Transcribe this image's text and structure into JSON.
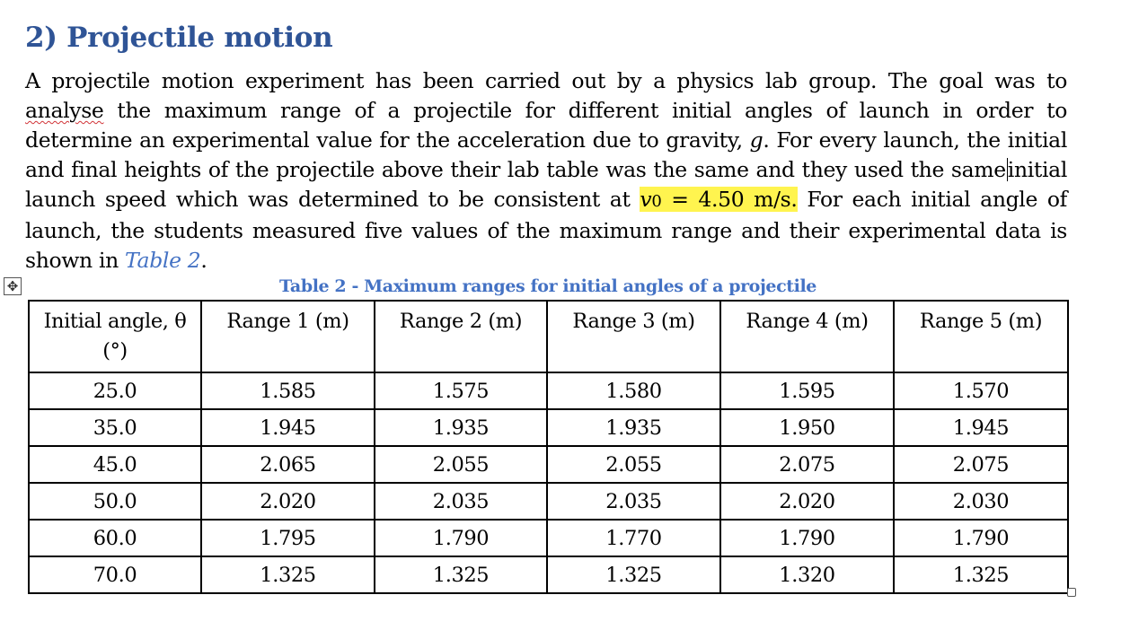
{
  "heading": "2) Projectile motion",
  "paragraph": {
    "p1": "A projectile motion experiment has been carried out by a physics lab group. The goal was to ",
    "p1_flagged": "analyse",
    "p2": " the maximum range of a projectile for different initial angles of launch in order to determine an experimental value for the acceleration due to gravity, ",
    "g_symbol": "g",
    "p3": ". For every launch, the initial and final heights of the projectile above their lab table was the same and they used the same",
    "p4": "initial launch speed which was determined to be consistent at ",
    "v0_symbol": "v",
    "v0_sub": "0",
    "v0_value": " = 4.50 m/s.",
    "p5": " For each initial angle of launch, the students measured five values of the maximum range and their experimental data is shown in ",
    "table_ref": "Table 2",
    "p6": "."
  },
  "table": {
    "caption": "Table 2 - Maximum ranges for initial angles of a projectile",
    "headers": [
      "Initial angle, θ (°)",
      "Range 1 (m)",
      "Range 2 (m)",
      "Range 3 (m)",
      "Range 4 (m)",
      "Range 5 (m)"
    ],
    "rows": [
      [
        "25.0",
        "1.585",
        "1.575",
        "1.580",
        "1.595",
        "1.570"
      ],
      [
        "35.0",
        "1.945",
        "1.935",
        "1.935",
        "1.950",
        "1.945"
      ],
      [
        "45.0",
        "2.065",
        "2.055",
        "2.055",
        "2.075",
        "2.075"
      ],
      [
        "50.0",
        "2.020",
        "2.035",
        "2.035",
        "2.020",
        "2.030"
      ],
      [
        "60.0",
        "1.795",
        "1.790",
        "1.770",
        "1.790",
        "1.790"
      ],
      [
        "70.0",
        "1.325",
        "1.325",
        "1.325",
        "1.320",
        "1.325"
      ]
    ]
  },
  "handles": {
    "move_icon": "move-icon",
    "move_glyph": "✥",
    "resize_icon": "resize-icon"
  },
  "colors": {
    "heading": "#2f5496",
    "caption": "#4472c4",
    "highlight": "#fff44f",
    "spellcheck": "#d13438"
  }
}
